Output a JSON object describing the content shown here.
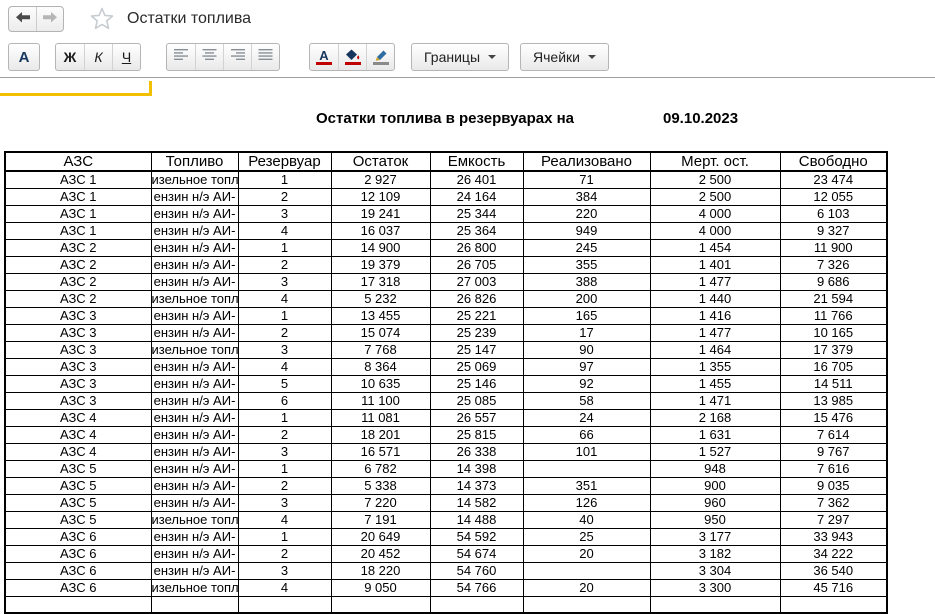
{
  "window": {
    "title": "Остатки топлива"
  },
  "icons": {
    "back": "arrow-left",
    "forward": "arrow-right",
    "favorite": "star-outline",
    "font": "letter-A",
    "text_color": "letter-A-red-bar",
    "fill_color": "paint-bucket-red-bar",
    "line_color": "pencil-gray-bar",
    "dropdown": "triangle-down",
    "align": [
      "align-left",
      "align-center",
      "align-right",
      "align-justify"
    ]
  },
  "toolbar": {
    "font_label": "А",
    "bold_label": "Ж",
    "italic_label": "К",
    "underline_label": "Ч",
    "text_color_label": "А",
    "borders_label": "Границы",
    "cells_label": "Ячейки"
  },
  "report": {
    "title": "Остатки топлива в резервуарах на",
    "date": "09.10.2023"
  },
  "table": {
    "columns": [
      "АЗС",
      "Топливо",
      "Резервуар",
      "Остаток",
      "Емкость",
      "Реализовано",
      "Мерт. ост.",
      "Свободно"
    ],
    "rows": [
      [
        "АЗС 1",
        "изельное топл",
        "1",
        "2 927",
        "26 401",
        "71",
        "2 500",
        "23 474"
      ],
      [
        "АЗС 1",
        "ензин н/э АИ-",
        "2",
        "12 109",
        "24 164",
        "384",
        "2 500",
        "12 055"
      ],
      [
        "АЗС 1",
        "ензин н/э АИ-",
        "3",
        "19 241",
        "25 344",
        "220",
        "4 000",
        "6 103"
      ],
      [
        "АЗС 1",
        "ензин н/э АИ-",
        "4",
        "16 037",
        "25 364",
        "949",
        "4 000",
        "9 327"
      ],
      [
        "АЗС 2",
        "ензин н/э АИ-",
        "1",
        "14 900",
        "26 800",
        "245",
        "1 454",
        "11 900"
      ],
      [
        "АЗС 2",
        "ензин н/э АИ-",
        "2",
        "19 379",
        "26 705",
        "355",
        "1 401",
        "7 326"
      ],
      [
        "АЗС 2",
        "ензин н/э АИ-",
        "3",
        "17 318",
        "27 003",
        "388",
        "1 477",
        "9 686"
      ],
      [
        "АЗС 2",
        "изельное топл",
        "4",
        "5 232",
        "26 826",
        "200",
        "1 440",
        "21 594"
      ],
      [
        "АЗС 3",
        "ензин н/э АИ-",
        "1",
        "13 455",
        "25 221",
        "165",
        "1 416",
        "11 766"
      ],
      [
        "АЗС 3",
        "ензин н/э АИ-",
        "2",
        "15 074",
        "25 239",
        "17",
        "1 477",
        "10 165"
      ],
      [
        "АЗС 3",
        "изельное топл",
        "3",
        "7 768",
        "25 147",
        "90",
        "1 464",
        "17 379"
      ],
      [
        "АЗС 3",
        "ензин н/э АИ-",
        "4",
        "8 364",
        "25 069",
        "97",
        "1 355",
        "16 705"
      ],
      [
        "АЗС 3",
        "ензин н/э АИ-",
        "5",
        "10 635",
        "25 146",
        "92",
        "1 455",
        "14 511"
      ],
      [
        "АЗС 3",
        "ензин н/э АИ-",
        "6",
        "11 100",
        "25 085",
        "58",
        "1 471",
        "13 985"
      ],
      [
        "АЗС 4",
        "ензин н/э АИ-",
        "1",
        "11 081",
        "26 557",
        "24",
        "2 168",
        "15 476"
      ],
      [
        "АЗС 4",
        "ензин н/э АИ-",
        "2",
        "18 201",
        "25 815",
        "66",
        "1 631",
        "7 614"
      ],
      [
        "АЗС 4",
        "ензин н/э АИ-",
        "3",
        "16 571",
        "26 338",
        "101",
        "1 527",
        "9 767"
      ],
      [
        "АЗС 5",
        "ензин н/э АИ-",
        "1",
        "6 782",
        "14 398",
        "",
        "948",
        "7 616"
      ],
      [
        "АЗС 5",
        "ензин н/э АИ-",
        "2",
        "5 338",
        "14 373",
        "351",
        "900",
        "9 035"
      ],
      [
        "АЗС 5",
        "ензин н/э АИ-",
        "3",
        "7 220",
        "14 582",
        "126",
        "960",
        "7 362"
      ],
      [
        "АЗС 5",
        "изельное топл",
        "4",
        "7 191",
        "14 488",
        "40",
        "950",
        "7 297"
      ],
      [
        "АЗС 6",
        "ензин н/э АИ-",
        "1",
        "20 649",
        "54 592",
        "25",
        "3 177",
        "33 943"
      ],
      [
        "АЗС 6",
        "ензин н/э АИ-",
        "2",
        "20 452",
        "54 674",
        "20",
        "3 182",
        "34 222"
      ],
      [
        "АЗС 6",
        "ензин н/э АИ-",
        "3",
        "18 220",
        "54 760",
        "",
        "3 304",
        "36 540"
      ],
      [
        "АЗС 6",
        "изельное топл",
        "4",
        "9 050",
        "54 766",
        "20",
        "3 300",
        "45 716"
      ]
    ]
  },
  "colors": {
    "selection_accent": "#f3c000",
    "toolbar_red": "#c00000",
    "icon_navy": "#17365d",
    "table_border": "#000000"
  }
}
